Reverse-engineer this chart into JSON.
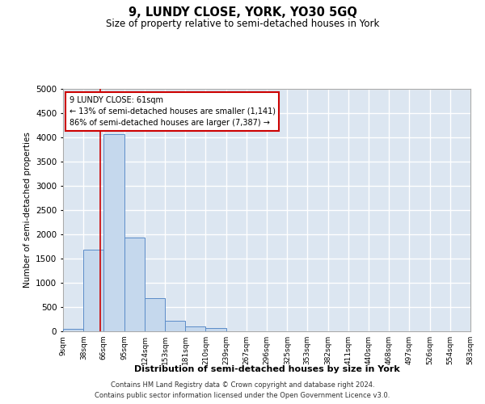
{
  "title": "9, LUNDY CLOSE, YORK, YO30 5GQ",
  "subtitle": "Size of property relative to semi-detached houses in York",
  "xlabel": "Distribution of semi-detached houses by size in York",
  "ylabel": "Number of semi-detached properties",
  "footer_line1": "Contains HM Land Registry data © Crown copyright and database right 2024.",
  "footer_line2": "Contains public sector information licensed under the Open Government Licence v3.0.",
  "bar_color": "#c5d8ed",
  "bar_edge_color": "#5b8cc8",
  "bg_color": "#dce6f1",
  "grid_color": "white",
  "annotation_box_color": "#cc0000",
  "property_line_color": "#cc0000",
  "property_value": 61,
  "annotation_title": "9 LUNDY CLOSE: 61sqm",
  "annotation_line1": "← 13% of semi-detached houses are smaller (1,141)",
  "annotation_line2": "86% of semi-detached houses are larger (7,387) →",
  "bin_edges": [
    9,
    38,
    66,
    95,
    124,
    153,
    181,
    210,
    239,
    267,
    296,
    325,
    353,
    382,
    411,
    440,
    468,
    497,
    526,
    554,
    583
  ],
  "bin_labels": [
    "9sqm",
    "38sqm",
    "66sqm",
    "95sqm",
    "124sqm",
    "153sqm",
    "181sqm",
    "210sqm",
    "239sqm",
    "267sqm",
    "296sqm",
    "325sqm",
    "353sqm",
    "382sqm",
    "411sqm",
    "440sqm",
    "468sqm",
    "497sqm",
    "526sqm",
    "554sqm",
    "583sqm"
  ],
  "bar_heights": [
    50,
    1680,
    4060,
    1930,
    680,
    215,
    100,
    60,
    0,
    0,
    0,
    0,
    0,
    0,
    0,
    0,
    0,
    0,
    0,
    0
  ],
  "ylim": [
    0,
    5000
  ],
  "yticks": [
    0,
    500,
    1000,
    1500,
    2000,
    2500,
    3000,
    3500,
    4000,
    4500,
    5000
  ]
}
